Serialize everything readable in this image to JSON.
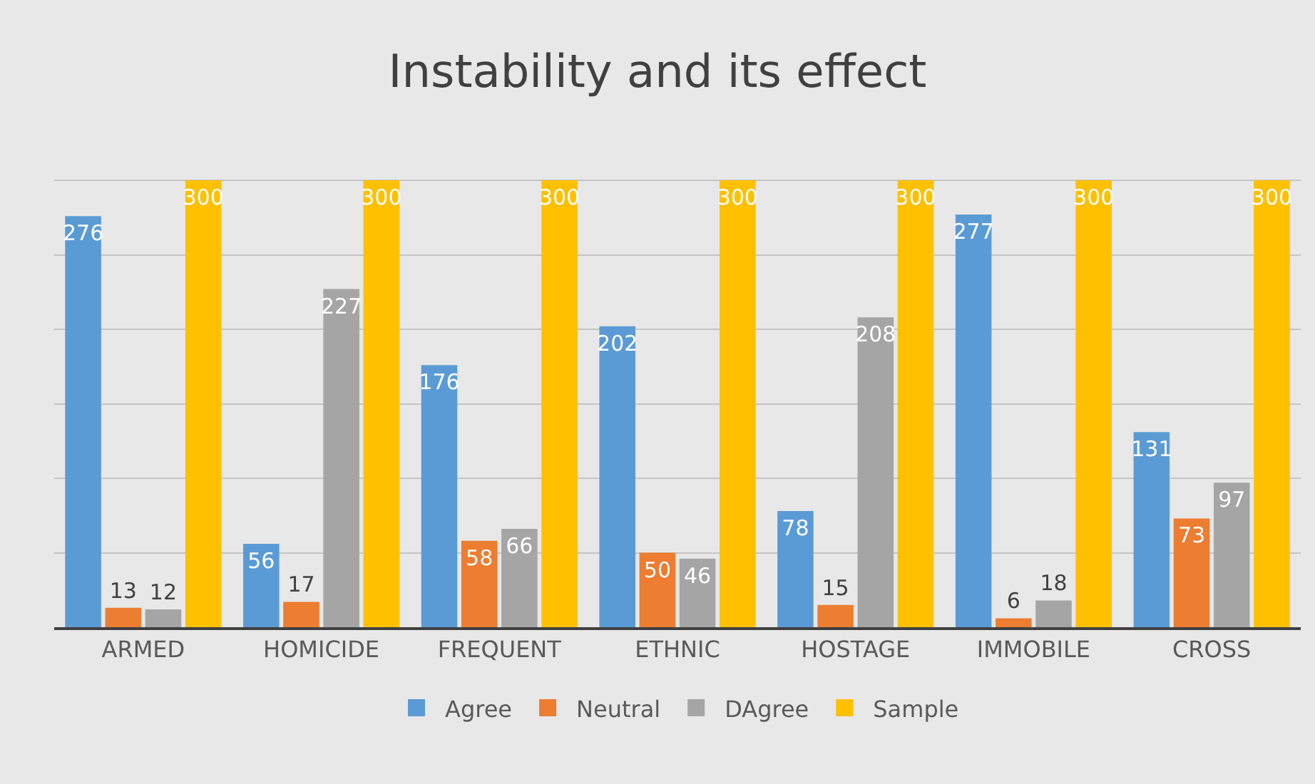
{
  "chart_data": {
    "type": "bar",
    "title": "Instability and its effect",
    "categories": [
      "ARMED",
      "HOMICIDE",
      "FREQUENT",
      "ETHNIC",
      "HOSTAGE",
      "IMMOBILE",
      "CROSS"
    ],
    "series": [
      {
        "name": "Agree",
        "color": "#5b9bd5",
        "values": [
          276,
          56,
          176,
          202,
          78,
          277,
          131
        ]
      },
      {
        "name": "Neutral",
        "color": "#ed7d31",
        "values": [
          13,
          17,
          58,
          50,
          15,
          6,
          73
        ]
      },
      {
        "name": "DAgree",
        "color": "#a5a5a5",
        "values": [
          12,
          227,
          66,
          46,
          208,
          18,
          97
        ]
      },
      {
        "name": "Sample",
        "color": "#ffc000",
        "values": [
          300,
          300,
          300,
          300,
          300,
          300,
          300
        ]
      }
    ],
    "yticks": [
      {
        "value": 0,
        "label": null
      },
      {
        "value": 50,
        "label": null
      },
      {
        "value": 100,
        "label": null
      },
      {
        "value": 150,
        "label": null
      },
      {
        "value": 200,
        "label": null
      },
      {
        "value": 250,
        "label": null
      },
      {
        "value": 300,
        "label": null
      }
    ],
    "grid": "y",
    "legend": "bottom",
    "data_labels": true
  }
}
